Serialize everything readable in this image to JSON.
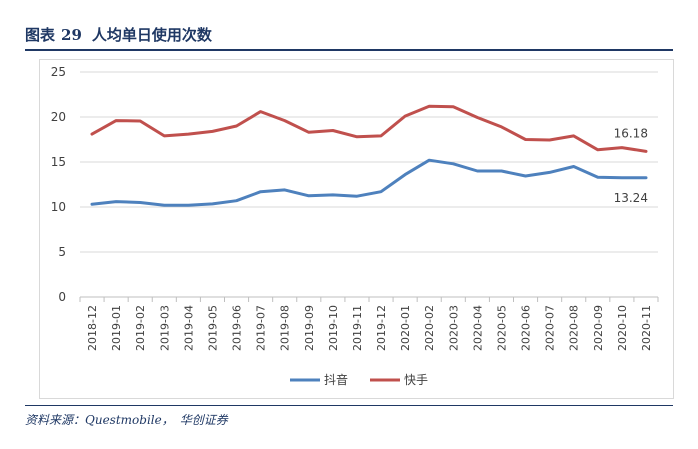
{
  "header": {
    "figure_label": "图表",
    "figure_number": "29",
    "title": "人均单日使用次数"
  },
  "footer": {
    "source_label": "资料来源：",
    "source_text": "Questmobile，",
    "source_org": "华创证券"
  },
  "chart_data": {
    "type": "line",
    "title": "",
    "xlabel": "",
    "ylabel": "",
    "ylim": [
      0,
      25
    ],
    "yticks": [
      0,
      5,
      10,
      15,
      20,
      25
    ],
    "grid": true,
    "legend_position": "bottom",
    "categories": [
      "2018-12",
      "2019-01",
      "2019-02",
      "2019-03",
      "2019-04",
      "2019-05",
      "2019-06",
      "2019-07",
      "2019-08",
      "2019-09",
      "2019-10",
      "2019-11",
      "2019-12",
      "2020-01",
      "2020-02",
      "2020-03",
      "2020-04",
      "2020-05",
      "2020-06",
      "2020-07",
      "2020-08",
      "2020-09",
      "2020-10",
      "2020-11"
    ],
    "series": [
      {
        "name": "抖音",
        "color": "#4e81bd",
        "values": [
          10.3,
          10.6,
          10.5,
          10.2,
          10.2,
          10.35,
          10.7,
          11.7,
          11.9,
          11.25,
          11.35,
          11.2,
          11.7,
          13.6,
          15.2,
          14.8,
          14.0,
          14.0,
          13.45,
          13.85,
          14.5,
          13.3,
          13.25,
          13.24
        ],
        "end_label": "13.24"
      },
      {
        "name": "快手",
        "color": "#c0504d",
        "values": [
          18.1,
          19.6,
          19.55,
          17.9,
          18.1,
          18.4,
          19.0,
          20.6,
          19.6,
          18.3,
          18.5,
          17.8,
          17.9,
          20.1,
          21.2,
          21.15,
          19.95,
          18.9,
          17.5,
          17.45,
          17.9,
          16.35,
          16.6,
          16.18
        ],
        "end_label": "16.18"
      }
    ]
  }
}
